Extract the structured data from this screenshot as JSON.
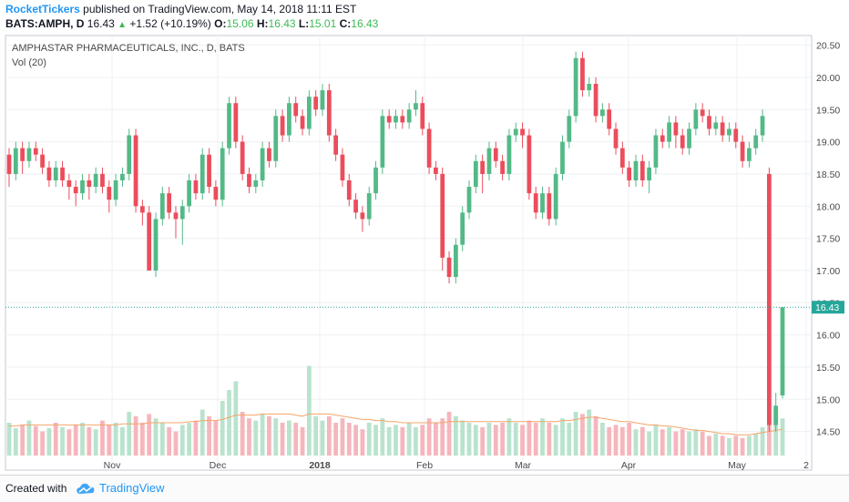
{
  "header": {
    "author": "RocketTickers",
    "published": " published on TradingView.com, May 14, 2018 11:11 EST",
    "symbol": "BATS:AMPH, D",
    "last": "16.43",
    "change": "+1.52 (+10.19%)",
    "o_label": "O:",
    "o_val": "15.06",
    "h_label": "H:",
    "h_val": "16.43",
    "l_label": "L:",
    "l_val": "15.01",
    "c_label": "C:",
    "c_val": "16.43"
  },
  "footer": {
    "created_with": "Created with",
    "brand": "TradingView"
  },
  "colors": {
    "up": "#53b987",
    "down": "#eb4d5c",
    "vol_up": "#b9e3cd",
    "vol_down": "#f5b6bc",
    "ma": "#f5a56a",
    "last_price": "#26a69a",
    "grid": "#eef0f3"
  },
  "chart_data": {
    "type": "candlestick",
    "title": "AMPHASTAR PHARMACEUTICALS, INC., D, BATS",
    "volume_label": "Vol (20)",
    "last_price_label": "16.43",
    "ylim": [
      13.9,
      20.65
    ],
    "yticks": [
      "20.50",
      "20.00",
      "19.50",
      "19.00",
      "18.50",
      "18.00",
      "17.50",
      "17.00",
      "16.50",
      "16.00",
      "15.50",
      "15.00",
      "14.50"
    ],
    "xticks": [
      "Nov",
      "Dec",
      "2018",
      "Feb",
      "Mar",
      "Apr",
      "May",
      "2"
    ],
    "bold_xticks": [
      "2018"
    ],
    "candles": [
      [
        18.8,
        18.5,
        18.9,
        18.3
      ],
      [
        18.5,
        18.9,
        19.0,
        18.4
      ],
      [
        18.9,
        18.7,
        19.0,
        18.5
      ],
      [
        18.7,
        18.9,
        19.0,
        18.6
      ],
      [
        18.9,
        18.8,
        19.0,
        18.7
      ],
      [
        18.8,
        18.6,
        18.9,
        18.5
      ],
      [
        18.6,
        18.4,
        18.7,
        18.3
      ],
      [
        18.4,
        18.6,
        18.7,
        18.3
      ],
      [
        18.6,
        18.4,
        18.7,
        18.3
      ],
      [
        18.4,
        18.3,
        18.5,
        18.1
      ],
      [
        18.3,
        18.2,
        18.4,
        18.0
      ],
      [
        18.2,
        18.4,
        18.5,
        18.1
      ],
      [
        18.4,
        18.3,
        18.5,
        18.1
      ],
      [
        18.3,
        18.5,
        18.6,
        18.2
      ],
      [
        18.5,
        18.3,
        18.6,
        18.2
      ],
      [
        18.3,
        18.1,
        18.4,
        17.9
      ],
      [
        18.1,
        18.4,
        18.5,
        18.0
      ],
      [
        18.4,
        18.5,
        18.6,
        18.3
      ],
      [
        18.5,
        19.1,
        19.2,
        18.4
      ],
      [
        19.1,
        18.0,
        19.2,
        17.9
      ],
      [
        18.0,
        17.9,
        18.1,
        17.7
      ],
      [
        17.9,
        17.0,
        18.0,
        17.0
      ],
      [
        17.0,
        17.8,
        17.9,
        16.9
      ],
      [
        17.8,
        18.2,
        18.3,
        17.7
      ],
      [
        18.2,
        17.9,
        18.3,
        17.8
      ],
      [
        17.9,
        17.8,
        18.0,
        17.5
      ],
      [
        17.8,
        18.0,
        18.1,
        17.4
      ],
      [
        18.0,
        18.4,
        18.5,
        17.9
      ],
      [
        18.4,
        18.2,
        18.5,
        18.1
      ],
      [
        18.2,
        18.8,
        18.9,
        18.1
      ],
      [
        18.8,
        18.3,
        18.9,
        18.2
      ],
      [
        18.3,
        18.1,
        18.4,
        18.0
      ],
      [
        18.1,
        18.9,
        19.0,
        18.0
      ],
      [
        18.9,
        19.6,
        19.7,
        18.8
      ],
      [
        19.6,
        19.0,
        19.7,
        18.9
      ],
      [
        19.0,
        18.5,
        19.1,
        18.4
      ],
      [
        18.5,
        18.3,
        18.6,
        18.2
      ],
      [
        18.3,
        18.4,
        18.5,
        18.2
      ],
      [
        18.4,
        18.9,
        19.0,
        18.3
      ],
      [
        18.9,
        18.7,
        19.0,
        18.6
      ],
      [
        18.7,
        19.4,
        19.5,
        18.6
      ],
      [
        19.4,
        19.1,
        19.5,
        19.0
      ],
      [
        19.1,
        19.6,
        19.7,
        19.0
      ],
      [
        19.6,
        19.4,
        19.7,
        19.3
      ],
      [
        19.4,
        19.2,
        19.5,
        19.1
      ],
      [
        19.2,
        19.7,
        19.8,
        19.1
      ],
      [
        19.7,
        19.5,
        19.8,
        19.4
      ],
      [
        19.5,
        19.8,
        19.9,
        19.4
      ],
      [
        19.8,
        19.1,
        19.9,
        19.0
      ],
      [
        19.1,
        18.8,
        19.2,
        18.7
      ],
      [
        18.8,
        18.4,
        18.9,
        18.3
      ],
      [
        18.4,
        18.1,
        18.5,
        18.0
      ],
      [
        18.1,
        17.9,
        18.2,
        17.8
      ],
      [
        17.9,
        17.8,
        18.0,
        17.6
      ],
      [
        17.8,
        18.2,
        18.3,
        17.7
      ],
      [
        18.2,
        18.6,
        18.7,
        18.1
      ],
      [
        18.6,
        19.4,
        19.5,
        18.5
      ],
      [
        19.4,
        19.3,
        19.5,
        19.2
      ],
      [
        19.3,
        19.4,
        19.5,
        19.2
      ],
      [
        19.4,
        19.3,
        19.5,
        19.2
      ],
      [
        19.3,
        19.5,
        19.6,
        19.2
      ],
      [
        19.5,
        19.6,
        19.8,
        19.4
      ],
      [
        19.6,
        19.2,
        19.7,
        19.1
      ],
      [
        19.2,
        18.6,
        19.3,
        18.5
      ],
      [
        18.6,
        18.5,
        18.7,
        18.4
      ],
      [
        18.5,
        17.2,
        18.6,
        17.0
      ],
      [
        17.2,
        16.9,
        17.3,
        16.8
      ],
      [
        16.9,
        17.4,
        17.5,
        16.8
      ],
      [
        17.4,
        17.9,
        18.0,
        17.3
      ],
      [
        17.9,
        18.3,
        18.4,
        17.8
      ],
      [
        18.3,
        18.7,
        18.8,
        18.2
      ],
      [
        18.7,
        18.5,
        18.8,
        18.2
      ],
      [
        18.5,
        18.9,
        19.0,
        18.4
      ],
      [
        18.9,
        18.7,
        19.0,
        18.6
      ],
      [
        18.7,
        18.5,
        18.8,
        18.4
      ],
      [
        18.5,
        19.1,
        19.2,
        18.4
      ],
      [
        19.1,
        19.2,
        19.3,
        19.0
      ],
      [
        19.2,
        19.1,
        19.3,
        18.9
      ],
      [
        19.1,
        18.2,
        19.2,
        18.1
      ],
      [
        18.2,
        17.9,
        18.3,
        17.8
      ],
      [
        17.9,
        18.2,
        18.3,
        17.8
      ],
      [
        18.2,
        17.8,
        18.3,
        17.7
      ],
      [
        17.8,
        18.5,
        18.6,
        17.7
      ],
      [
        18.5,
        19.0,
        19.1,
        18.4
      ],
      [
        19.0,
        19.4,
        19.5,
        18.9
      ],
      [
        19.4,
        20.3,
        20.4,
        19.3
      ],
      [
        20.3,
        19.8,
        20.4,
        19.7
      ],
      [
        19.8,
        19.9,
        20.0,
        19.7
      ],
      [
        19.9,
        19.4,
        20.0,
        19.3
      ],
      [
        19.4,
        19.5,
        19.6,
        19.3
      ],
      [
        19.5,
        19.2,
        19.6,
        19.1
      ],
      [
        19.2,
        18.9,
        19.3,
        18.8
      ],
      [
        18.9,
        18.6,
        19.0,
        18.5
      ],
      [
        18.6,
        18.4,
        18.7,
        18.3
      ],
      [
        18.4,
        18.7,
        18.8,
        18.3
      ],
      [
        18.7,
        18.4,
        18.8,
        18.3
      ],
      [
        18.4,
        18.6,
        18.7,
        18.2
      ],
      [
        18.6,
        19.1,
        19.2,
        18.5
      ],
      [
        19.1,
        19.0,
        19.2,
        18.9
      ],
      [
        19.0,
        19.3,
        19.4,
        18.9
      ],
      [
        19.3,
        19.1,
        19.4,
        18.9
      ],
      [
        19.1,
        18.9,
        19.2,
        18.8
      ],
      [
        18.9,
        19.2,
        19.3,
        18.8
      ],
      [
        19.2,
        19.5,
        19.6,
        19.1
      ],
      [
        19.5,
        19.4,
        19.6,
        19.3
      ],
      [
        19.4,
        19.2,
        19.5,
        19.1
      ],
      [
        19.2,
        19.3,
        19.4,
        19.1
      ],
      [
        19.3,
        19.1,
        19.4,
        19.0
      ],
      [
        19.1,
        19.2,
        19.3,
        19.0
      ],
      [
        19.2,
        19.0,
        19.3,
        18.9
      ],
      [
        19.0,
        18.7,
        19.1,
        18.6
      ],
      [
        18.7,
        18.9,
        19.0,
        18.6
      ],
      [
        18.9,
        19.1,
        19.2,
        18.8
      ],
      [
        19.1,
        19.4,
        19.5,
        19.0
      ],
      [
        18.5,
        14.6,
        18.6,
        14.5
      ],
      [
        14.6,
        14.9,
        15.1,
        14.5
      ],
      [
        15.06,
        16.43,
        16.43,
        15.01
      ]
    ],
    "volume": [
      [
        0.3,
        1
      ],
      [
        0.25,
        1
      ],
      [
        0.28,
        0
      ],
      [
        0.32,
        1
      ],
      [
        0.27,
        0
      ],
      [
        0.22,
        0
      ],
      [
        0.25,
        1
      ],
      [
        0.3,
        0
      ],
      [
        0.26,
        1
      ],
      [
        0.24,
        0
      ],
      [
        0.28,
        0
      ],
      [
        0.3,
        1
      ],
      [
        0.26,
        0
      ],
      [
        0.24,
        1
      ],
      [
        0.32,
        0
      ],
      [
        0.28,
        0
      ],
      [
        0.3,
        1
      ],
      [
        0.26,
        1
      ],
      [
        0.4,
        1
      ],
      [
        0.36,
        0
      ],
      [
        0.3,
        0
      ],
      [
        0.38,
        0
      ],
      [
        0.34,
        1
      ],
      [
        0.3,
        1
      ],
      [
        0.26,
        0
      ],
      [
        0.22,
        0
      ],
      [
        0.28,
        1
      ],
      [
        0.3,
        1
      ],
      [
        0.32,
        0
      ],
      [
        0.42,
        1
      ],
      [
        0.36,
        0
      ],
      [
        0.32,
        0
      ],
      [
        0.5,
        1
      ],
      [
        0.6,
        1
      ],
      [
        0.68,
        1
      ],
      [
        0.4,
        0
      ],
      [
        0.34,
        0
      ],
      [
        0.32,
        1
      ],
      [
        0.38,
        1
      ],
      [
        0.36,
        0
      ],
      [
        0.34,
        1
      ],
      [
        0.3,
        0
      ],
      [
        0.32,
        1
      ],
      [
        0.3,
        0
      ],
      [
        0.26,
        0
      ],
      [
        0.82,
        1
      ],
      [
        0.36,
        1
      ],
      [
        0.32,
        1
      ],
      [
        0.36,
        0
      ],
      [
        0.3,
        0
      ],
      [
        0.34,
        0
      ],
      [
        0.3,
        0
      ],
      [
        0.28,
        0
      ],
      [
        0.24,
        0
      ],
      [
        0.3,
        1
      ],
      [
        0.28,
        1
      ],
      [
        0.34,
        1
      ],
      [
        0.26,
        1
      ],
      [
        0.28,
        1
      ],
      [
        0.26,
        0
      ],
      [
        0.3,
        1
      ],
      [
        0.26,
        1
      ],
      [
        0.28,
        0
      ],
      [
        0.34,
        0
      ],
      [
        0.3,
        0
      ],
      [
        0.34,
        0
      ],
      [
        0.4,
        0
      ],
      [
        0.36,
        1
      ],
      [
        0.32,
        1
      ],
      [
        0.3,
        1
      ],
      [
        0.28,
        1
      ],
      [
        0.26,
        0
      ],
      [
        0.3,
        1
      ],
      [
        0.28,
        0
      ],
      [
        0.3,
        0
      ],
      [
        0.34,
        1
      ],
      [
        0.3,
        1
      ],
      [
        0.28,
        0
      ],
      [
        0.32,
        0
      ],
      [
        0.3,
        0
      ],
      [
        0.34,
        1
      ],
      [
        0.3,
        0
      ],
      [
        0.28,
        1
      ],
      [
        0.34,
        1
      ],
      [
        0.3,
        1
      ],
      [
        0.4,
        1
      ],
      [
        0.38,
        0
      ],
      [
        0.42,
        1
      ],
      [
        0.36,
        0
      ],
      [
        0.3,
        1
      ],
      [
        0.26,
        0
      ],
      [
        0.28,
        0
      ],
      [
        0.26,
        0
      ],
      [
        0.3,
        0
      ],
      [
        0.24,
        1
      ],
      [
        0.26,
        0
      ],
      [
        0.22,
        1
      ],
      [
        0.28,
        1
      ],
      [
        0.24,
        0
      ],
      [
        0.26,
        1
      ],
      [
        0.22,
        0
      ],
      [
        0.24,
        0
      ],
      [
        0.22,
        1
      ],
      [
        0.24,
        1
      ],
      [
        0.22,
        0
      ],
      [
        0.18,
        0
      ],
      [
        0.2,
        1
      ],
      [
        0.18,
        0
      ],
      [
        0.16,
        1
      ],
      [
        0.18,
        0
      ],
      [
        0.16,
        0
      ],
      [
        0.18,
        1
      ],
      [
        0.2,
        1
      ],
      [
        0.26,
        1
      ],
      [
        0.48,
        0
      ],
      [
        0.42,
        1
      ],
      [
        0.34,
        1
      ]
    ],
    "volume_ma": [
      0.27,
      0.27,
      0.28,
      0.28,
      0.28,
      0.28,
      0.28,
      0.28,
      0.28,
      0.28,
      0.28,
      0.28,
      0.28,
      0.28,
      0.28,
      0.28,
      0.28,
      0.29,
      0.29,
      0.29,
      0.29,
      0.3,
      0.3,
      0.3,
      0.3,
      0.3,
      0.3,
      0.31,
      0.31,
      0.32,
      0.32,
      0.32,
      0.33,
      0.35,
      0.37,
      0.37,
      0.37,
      0.37,
      0.38,
      0.38,
      0.38,
      0.38,
      0.38,
      0.37,
      0.36,
      0.38,
      0.38,
      0.38,
      0.38,
      0.37,
      0.36,
      0.35,
      0.34,
      0.33,
      0.33,
      0.32,
      0.32,
      0.31,
      0.31,
      0.3,
      0.3,
      0.3,
      0.3,
      0.3,
      0.3,
      0.3,
      0.31,
      0.31,
      0.31,
      0.31,
      0.31,
      0.31,
      0.31,
      0.31,
      0.31,
      0.31,
      0.31,
      0.31,
      0.31,
      0.31,
      0.31,
      0.31,
      0.31,
      0.32,
      0.32,
      0.33,
      0.34,
      0.35,
      0.35,
      0.34,
      0.33,
      0.32,
      0.31,
      0.31,
      0.3,
      0.29,
      0.28,
      0.28,
      0.27,
      0.27,
      0.26,
      0.25,
      0.24,
      0.23,
      0.23,
      0.22,
      0.21,
      0.2,
      0.2,
      0.19,
      0.19,
      0.19,
      0.2,
      0.21,
      0.22,
      0.23,
      0.24
    ]
  }
}
